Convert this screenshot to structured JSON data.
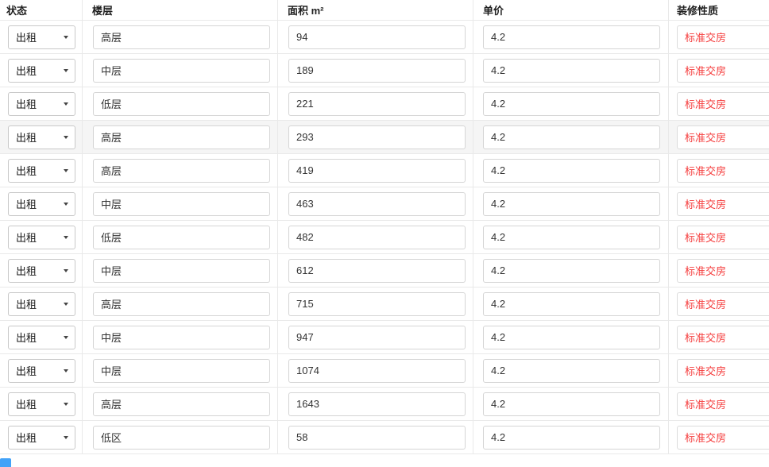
{
  "table": {
    "columns": [
      {
        "key": "status",
        "label": "状态"
      },
      {
        "key": "floor",
        "label": "楼层"
      },
      {
        "key": "area",
        "label": "面积 m²"
      },
      {
        "key": "price",
        "label": "单价"
      },
      {
        "key": "decoration",
        "label": "装修性质"
      }
    ],
    "rows": [
      {
        "status": "出租",
        "floor": "高层",
        "area": "94",
        "price": "4.2",
        "decoration": "标准交房"
      },
      {
        "status": "出租",
        "floor": "中层",
        "area": "189",
        "price": "4.2",
        "decoration": "标准交房"
      },
      {
        "status": "出租",
        "floor": "低层",
        "area": "221",
        "price": "4.2",
        "decoration": "标准交房"
      },
      {
        "status": "出租",
        "floor": "高层",
        "area": "293",
        "price": "4.2",
        "decoration": "标准交房"
      },
      {
        "status": "出租",
        "floor": "高层",
        "area": "419",
        "price": "4.2",
        "decoration": "标准交房"
      },
      {
        "status": "出租",
        "floor": "中层",
        "area": "463",
        "price": "4.2",
        "decoration": "标准交房"
      },
      {
        "status": "出租",
        "floor": "低层",
        "area": "482",
        "price": "4.2",
        "decoration": "标准交房"
      },
      {
        "status": "出租",
        "floor": "中层",
        "area": "612",
        "price": "4.2",
        "decoration": "标准交房"
      },
      {
        "status": "出租",
        "floor": "高层",
        "area": "715",
        "price": "4.2",
        "decoration": "标准交房"
      },
      {
        "status": "出租",
        "floor": "中层",
        "area": "947",
        "price": "4.2",
        "decoration": "标准交房"
      },
      {
        "status": "出租",
        "floor": "中层",
        "area": "1074",
        "price": "4.2",
        "decoration": "标准交房"
      },
      {
        "status": "出租",
        "floor": "高层",
        "area": "1643",
        "price": "4.2",
        "decoration": "标准交房"
      },
      {
        "status": "出租",
        "floor": "低区",
        "area": "58",
        "price": "4.2",
        "decoration": "标准交房"
      }
    ],
    "highlighted_row_index": 3
  },
  "icons": {
    "status_dropdown": "caret-down-icon"
  },
  "colors": {
    "decoration_text": "#f53c3c",
    "row_highlight": "#f5f5f5",
    "grid_line": "#e9e9e9",
    "input_border": "#d5d5d5",
    "partial_button_blue": "#42a2f8"
  }
}
